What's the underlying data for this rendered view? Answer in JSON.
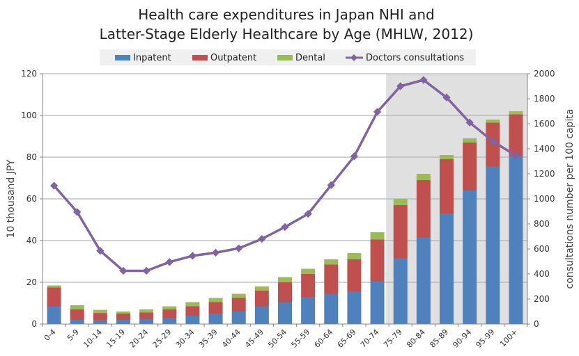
{
  "chart_data": {
    "type": "bar",
    "title_line1": "Health care expenditures in Japan NHI and",
    "title_line2": "Latter-Stage Elderly Healthcare by Age (MHLW, 2012)",
    "ylabel": "10 thousand JPY",
    "y2label": "consultations number per 100 capita",
    "ylim": [
      0,
      120
    ],
    "y2lim": [
      0,
      2000
    ],
    "yticks": [
      0,
      20,
      40,
      60,
      80,
      100,
      120
    ],
    "y2ticks": [
      0,
      200,
      400,
      600,
      800,
      1000,
      1200,
      1400,
      1600,
      1800,
      2000
    ],
    "grid": true,
    "legend_position": "top",
    "shaded_from_category": "75-79",
    "categories": [
      "0-4",
      "5-9",
      "10-14",
      "15-19",
      "20-24",
      "25-29",
      "30-34",
      "35-39",
      "40-44",
      "45-49",
      "50-54",
      "55-59",
      "60-64",
      "65-69",
      "70-74",
      "75-79",
      "80-84",
      "85-89",
      "90-94",
      "95-99",
      "100+"
    ],
    "series": [
      {
        "name": "Inpatent",
        "kind": "stacked-bar",
        "color": "#4f81bd",
        "values": [
          8.5,
          2.0,
          1.8,
          2.0,
          2.5,
          3.0,
          4.0,
          5.0,
          6.0,
          8.5,
          10.5,
          13.0,
          14.5,
          15.5,
          20.5,
          31.5,
          41.5,
          53.0,
          64.0,
          75.5,
          80.5
        ]
      },
      {
        "name": "Outpatent",
        "kind": "stacked-bar",
        "color": "#c0504d",
        "values": [
          9.0,
          5.0,
          3.5,
          3.0,
          3.0,
          4.0,
          4.5,
          5.5,
          6.5,
          7.5,
          9.5,
          11.0,
          14.0,
          15.5,
          20.0,
          25.5,
          27.5,
          26.0,
          23.0,
          21.0,
          20.0
        ]
      },
      {
        "name": "Dental",
        "kind": "stacked-bar",
        "color": "#9bbb59",
        "values": [
          1.0,
          2.0,
          1.5,
          1.0,
          1.5,
          1.5,
          2.0,
          2.0,
          2.0,
          2.0,
          2.5,
          2.5,
          2.5,
          3.0,
          3.5,
          3.0,
          3.0,
          2.0,
          2.0,
          1.5,
          1.5
        ]
      },
      {
        "name": "Doctors consultations",
        "kind": "line",
        "axis": "right",
        "color": "#8064a2",
        "values": [
          1105,
          895,
          585,
          425,
          425,
          495,
          545,
          570,
          605,
          680,
          775,
          880,
          1110,
          1340,
          1695,
          1900,
          1950,
          1810,
          1610,
          1460,
          1345
        ]
      }
    ]
  }
}
